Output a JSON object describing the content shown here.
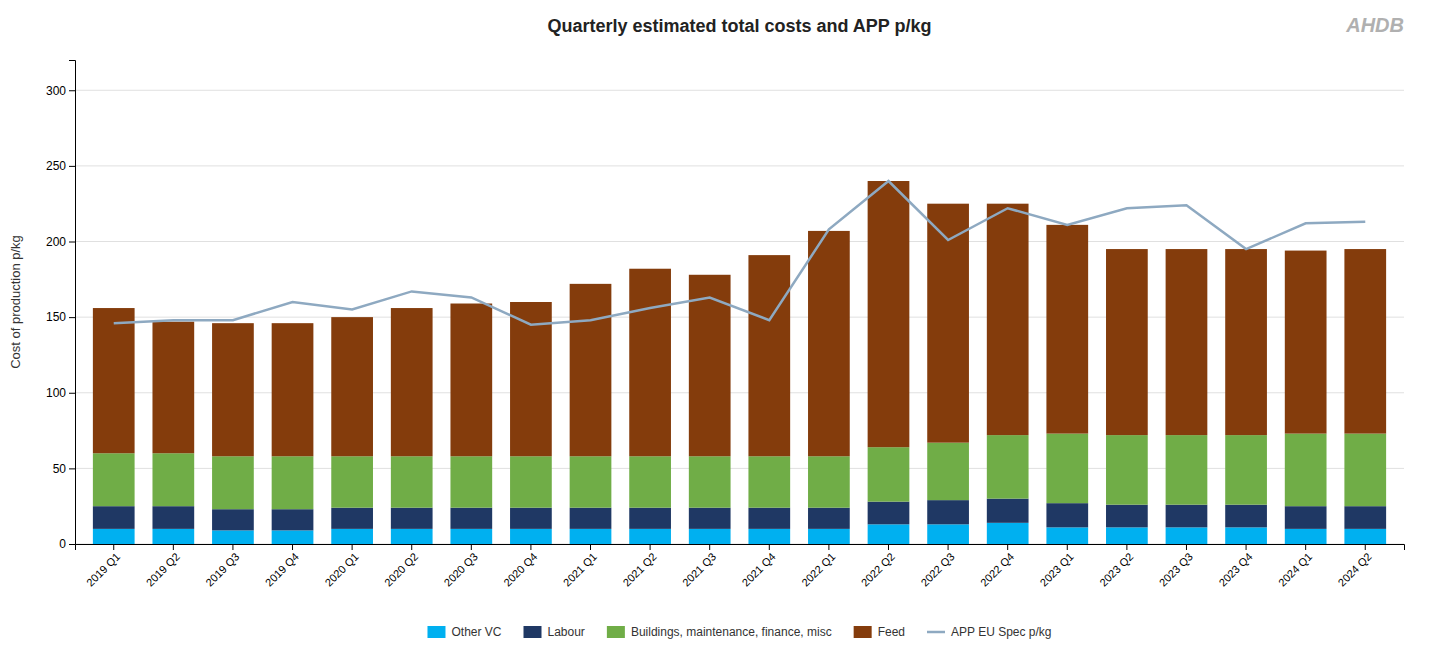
{
  "chart_data": {
    "type": "bar",
    "title": "Quarterly estimated total costs and APP p/kg",
    "ylabel": "Cost of production p/kg",
    "categories": [
      "2019 Q1",
      "2019 Q2",
      "2019 Q3",
      "2019 Q4",
      "2020 Q1",
      "2020 Q2",
      "2020 Q3",
      "2020 Q4",
      "2021 Q1",
      "2021 Q2",
      "2021 Q3",
      "2021 Q4",
      "2022 Q1",
      "2022 Q2",
      "2022 Q3",
      "2022 Q4",
      "2023 Q1",
      "2023 Q2",
      "2023 Q3",
      "2023 Q4",
      "2024 Q1",
      "2024 Q2"
    ],
    "series": [
      {
        "name": "Other VC",
        "type": "bar",
        "color": "#00B0F0",
        "values": [
          10,
          10,
          9,
          9,
          10,
          10,
          10,
          10,
          10,
          10,
          10,
          10,
          10,
          13,
          13,
          14,
          11,
          11,
          11,
          11,
          10,
          10
        ]
      },
      {
        "name": "Labour",
        "type": "bar",
        "color": "#1F3864",
        "values": [
          15,
          15,
          14,
          14,
          14,
          14,
          14,
          14,
          14,
          14,
          14,
          14,
          14,
          15,
          16,
          16,
          16,
          15,
          15,
          15,
          15,
          15
        ]
      },
      {
        "name": "Buildings, maintenance, finance, misc",
        "type": "bar",
        "color": "#70AD47",
        "values": [
          35,
          35,
          35,
          35,
          34,
          34,
          34,
          34,
          34,
          34,
          34,
          34,
          34,
          36,
          38,
          42,
          46,
          46,
          46,
          46,
          48,
          48
        ]
      },
      {
        "name": "Feed",
        "type": "bar",
        "color": "#843C0C",
        "values": [
          96,
          87,
          88,
          88,
          92,
          98,
          101,
          102,
          114,
          124,
          120,
          133,
          149,
          176,
          158,
          153,
          138,
          123,
          123,
          123,
          121,
          122
        ]
      },
      {
        "name": "APP EU Spec p/kg",
        "type": "line",
        "color": "#8EA9C1",
        "values": [
          146,
          148,
          148,
          160,
          155,
          167,
          163,
          145,
          148,
          156,
          163,
          148,
          208,
          240,
          201,
          222,
          211,
          222,
          224,
          195,
          212,
          213
        ]
      }
    ],
    "stacked": true,
    "ylim": [
      0,
      320
    ],
    "yticks": [
      0,
      50,
      100,
      150,
      200,
      250,
      300
    ],
    "grid": true,
    "legend": "bottom",
    "annotations": [
      "AHDB"
    ]
  }
}
